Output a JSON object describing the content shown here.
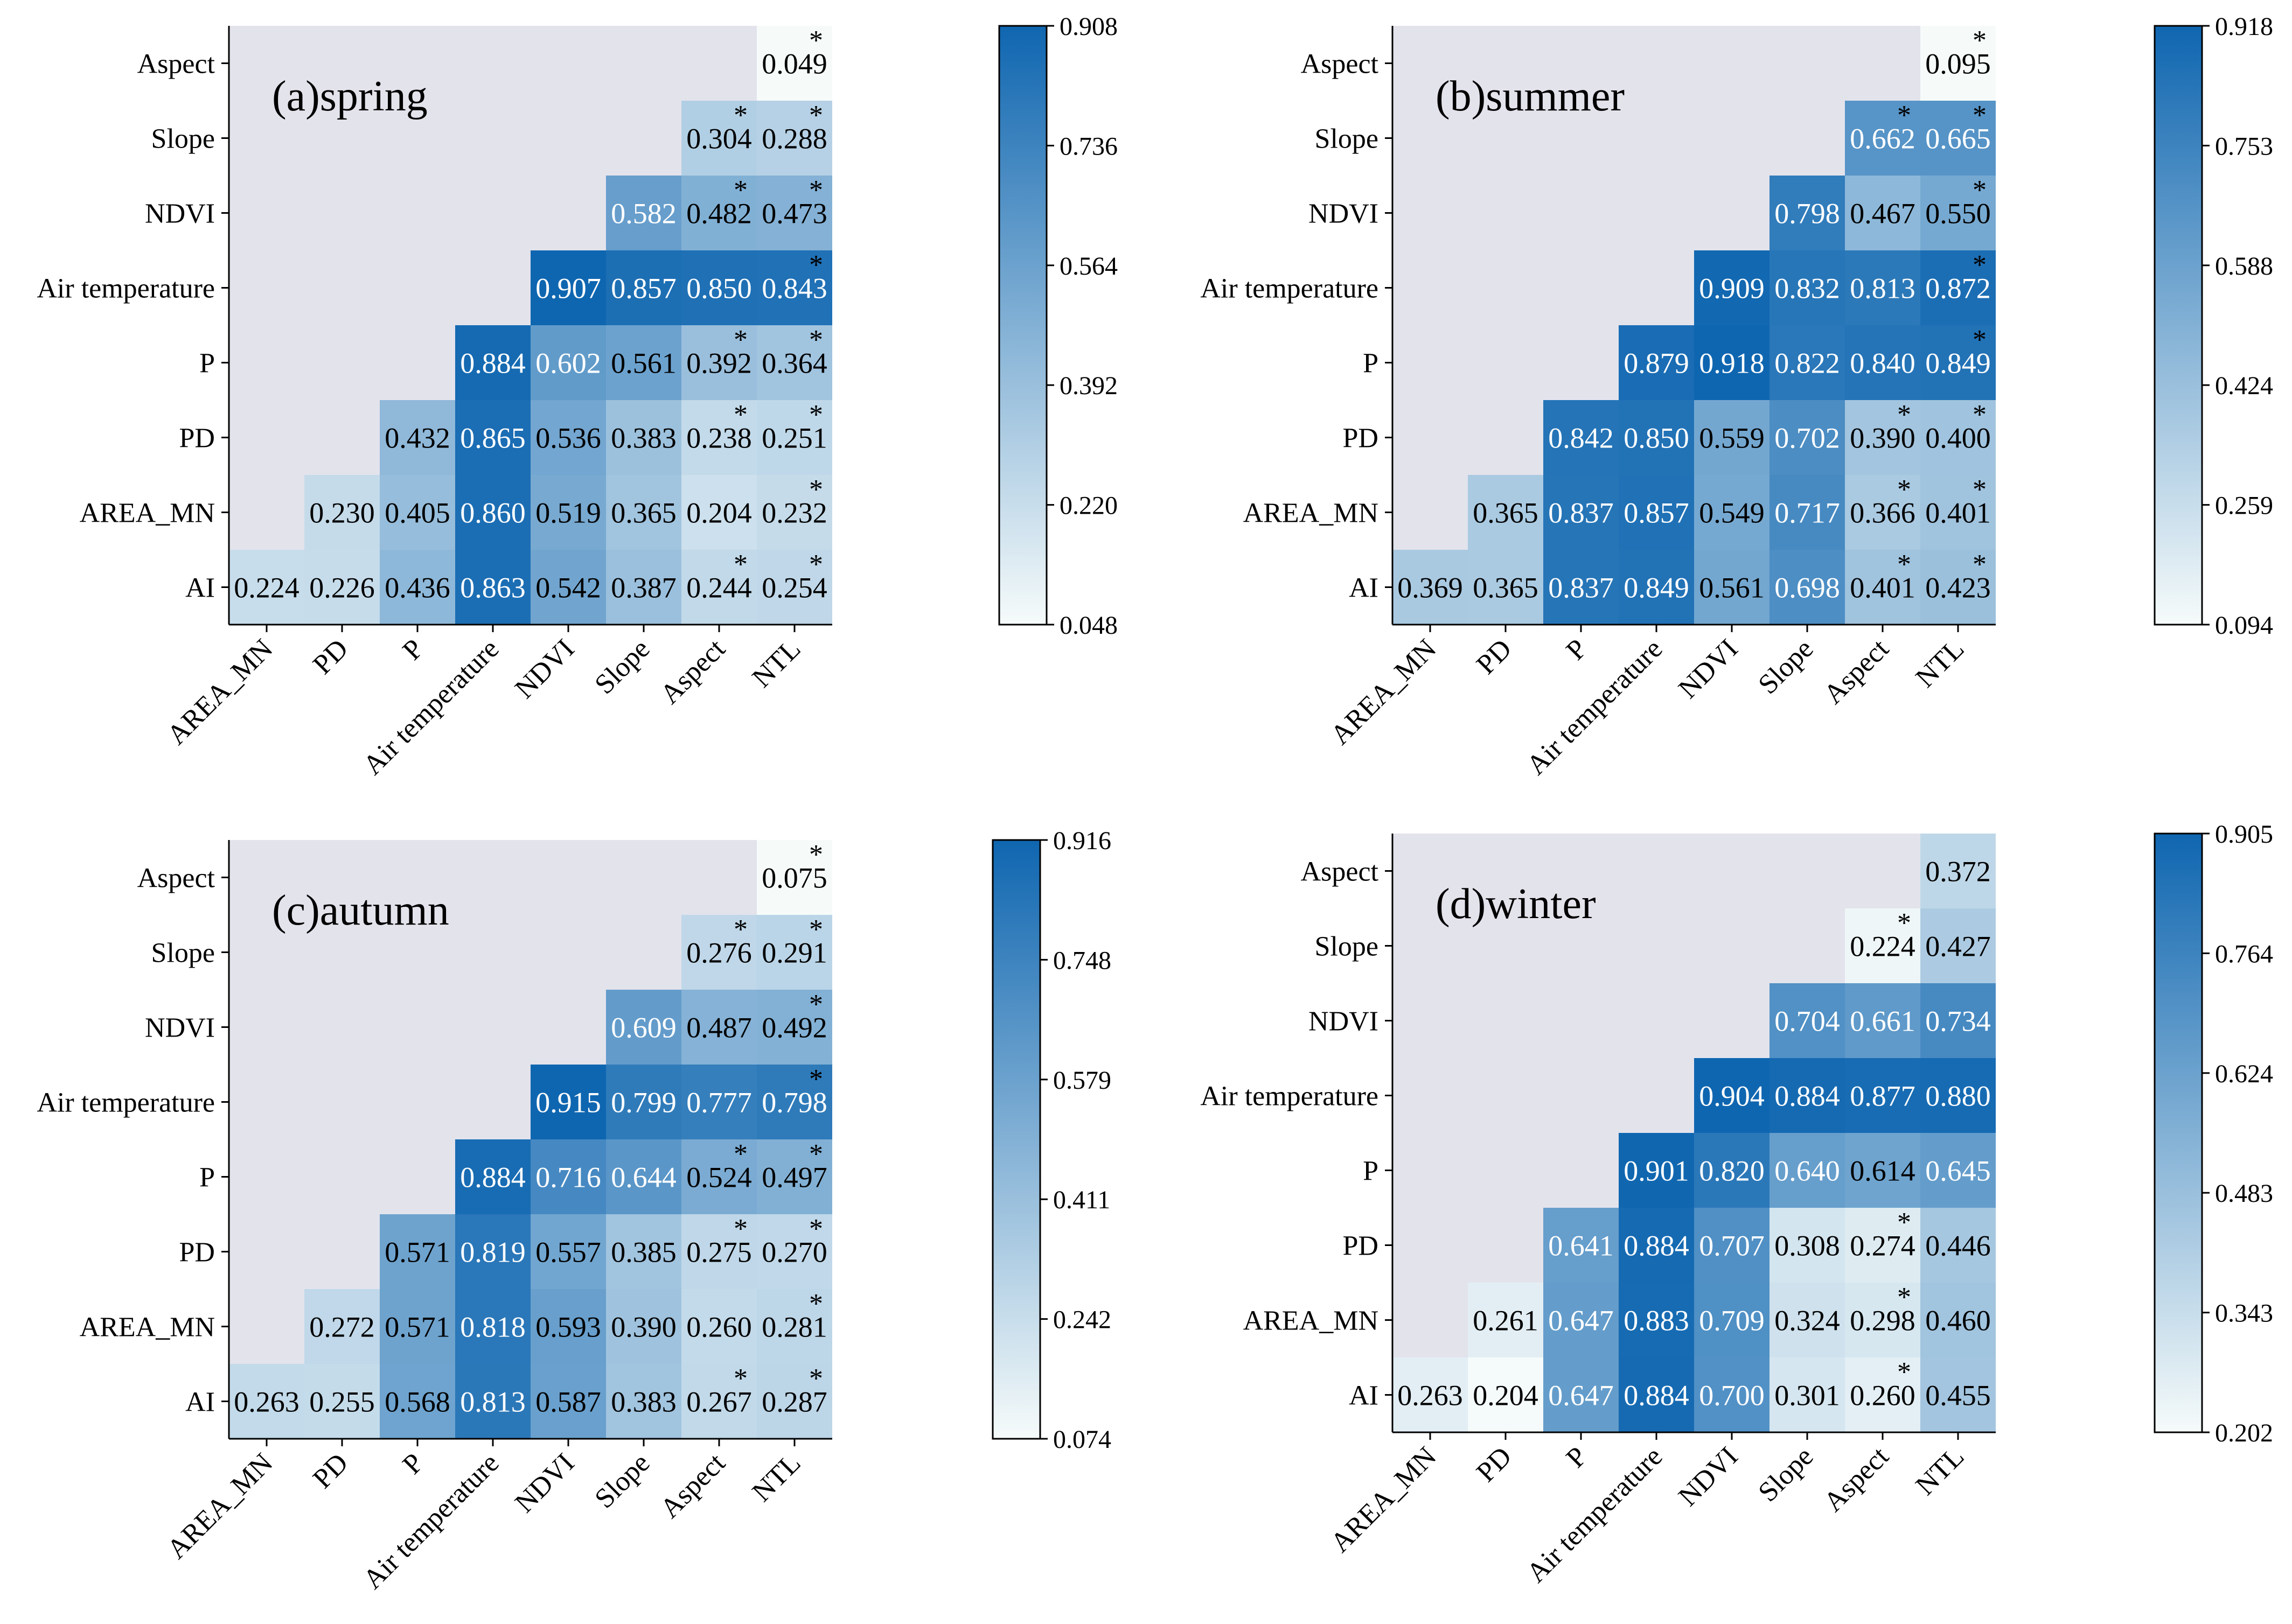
{
  "chart_data": [
    {
      "type": "heatmap",
      "title": "(a)spring",
      "row_labels": [
        "Aspect",
        "Slope",
        "NDVI",
        "Air temperature",
        "P",
        "PD",
        "AREA_MN",
        "AI"
      ],
      "col_labels": [
        "AREA_MN",
        "PD",
        "P",
        "Air temperature",
        "NDVI",
        "Slope",
        "Aspect",
        "NTL"
      ],
      "cells": [
        [
          "",
          "",
          "",
          "",
          "",
          "",
          "",
          "0.049"
        ],
        [
          "",
          "",
          "",
          "",
          "",
          "",
          "0.304",
          "0.288"
        ],
        [
          "",
          "",
          "",
          "",
          "",
          "0.582",
          "0.482",
          "0.473"
        ],
        [
          "",
          "",
          "",
          "",
          "0.907",
          "0.857",
          "0.850",
          "0.843"
        ],
        [
          "",
          "",
          "",
          "0.884",
          "0.602",
          "0.561",
          "0.392",
          "0.364"
        ],
        [
          "",
          "",
          "0.432",
          "0.865",
          "0.536",
          "0.383",
          "0.238",
          "0.251"
        ],
        [
          "",
          "0.230",
          "0.405",
          "0.860",
          "0.519",
          "0.365",
          "0.204",
          "0.232"
        ],
        [
          "0.224",
          "0.226",
          "0.436",
          "0.863",
          "0.542",
          "0.387",
          "0.244",
          "0.254"
        ]
      ],
      "stars": [
        [
          0,
          0,
          0,
          0,
          0,
          0,
          0,
          1
        ],
        [
          0,
          0,
          0,
          0,
          0,
          0,
          1,
          1
        ],
        [
          0,
          0,
          0,
          0,
          0,
          0,
          1,
          1
        ],
        [
          0,
          0,
          0,
          0,
          0,
          0,
          0,
          1
        ],
        [
          0,
          0,
          0,
          0,
          0,
          0,
          1,
          1
        ],
        [
          0,
          0,
          0,
          0,
          0,
          0,
          1,
          1
        ],
        [
          0,
          0,
          0,
          0,
          0,
          0,
          0,
          1
        ],
        [
          0,
          0,
          0,
          0,
          0,
          0,
          1,
          1
        ]
      ],
      "colorbar": {
        "min": 0.048,
        "max": 0.908,
        "ticks": [
          "0.908",
          "0.736",
          "0.564",
          "0.392",
          "0.220",
          "0.048"
        ]
      }
    },
    {
      "type": "heatmap",
      "title": "(b)summer",
      "row_labels": [
        "Aspect",
        "Slope",
        "NDVI",
        "Air temperature",
        "P",
        "PD",
        "AREA_MN",
        "AI"
      ],
      "col_labels": [
        "AREA_MN",
        "PD",
        "P",
        "Air temperature",
        "NDVI",
        "Slope",
        "Aspect",
        "NTL"
      ],
      "cells": [
        [
          "",
          "",
          "",
          "",
          "",
          "",
          "",
          "0.095"
        ],
        [
          "",
          "",
          "",
          "",
          "",
          "",
          "0.662",
          "0.665"
        ],
        [
          "",
          "",
          "",
          "",
          "",
          "0.798",
          "0.467",
          "0.550"
        ],
        [
          "",
          "",
          "",
          "",
          "0.909",
          "0.832",
          "0.813",
          "0.872"
        ],
        [
          "",
          "",
          "",
          "0.879",
          "0.918",
          "0.822",
          "0.840",
          "0.849"
        ],
        [
          "",
          "",
          "0.842",
          "0.850",
          "0.559",
          "0.702",
          "0.390",
          "0.400"
        ],
        [
          "",
          "0.365",
          "0.837",
          "0.857",
          "0.549",
          "0.717",
          "0.366",
          "0.401"
        ],
        [
          "0.369",
          "0.365",
          "0.837",
          "0.849",
          "0.561",
          "0.698",
          "0.401",
          "0.423"
        ]
      ],
      "stars": [
        [
          0,
          0,
          0,
          0,
          0,
          0,
          0,
          1
        ],
        [
          0,
          0,
          0,
          0,
          0,
          0,
          1,
          1
        ],
        [
          0,
          0,
          0,
          0,
          0,
          0,
          0,
          1
        ],
        [
          0,
          0,
          0,
          0,
          0,
          0,
          0,
          1
        ],
        [
          0,
          0,
          0,
          0,
          0,
          0,
          0,
          1
        ],
        [
          0,
          0,
          0,
          0,
          0,
          0,
          1,
          1
        ],
        [
          0,
          0,
          0,
          0,
          0,
          0,
          1,
          1
        ],
        [
          0,
          0,
          0,
          0,
          0,
          0,
          1,
          1
        ]
      ],
      "colorbar": {
        "min": 0.094,
        "max": 0.918,
        "ticks": [
          "0.918",
          "0.753",
          "0.588",
          "0.424",
          "0.259",
          "0.094"
        ]
      }
    },
    {
      "type": "heatmap",
      "title": "(c)autumn",
      "row_labels": [
        "Aspect",
        "Slope",
        "NDVI",
        "Air temperature",
        "P",
        "PD",
        "AREA_MN",
        "AI"
      ],
      "col_labels": [
        "AREA_MN",
        "PD",
        "P",
        "Air temperature",
        "NDVI",
        "Slope",
        "Aspect",
        "NTL"
      ],
      "cells": [
        [
          "",
          "",
          "",
          "",
          "",
          "",
          "",
          "0.075"
        ],
        [
          "",
          "",
          "",
          "",
          "",
          "",
          "0.276",
          "0.291"
        ],
        [
          "",
          "",
          "",
          "",
          "",
          "0.609",
          "0.487",
          "0.492"
        ],
        [
          "",
          "",
          "",
          "",
          "0.915",
          "0.799",
          "0.777",
          "0.798"
        ],
        [
          "",
          "",
          "",
          "0.884",
          "0.716",
          "0.644",
          "0.524",
          "0.497"
        ],
        [
          "",
          "",
          "0.571",
          "0.819",
          "0.557",
          "0.385",
          "0.275",
          "0.270"
        ],
        [
          "",
          "0.272",
          "0.571",
          "0.818",
          "0.593",
          "0.390",
          "0.260",
          "0.281"
        ],
        [
          "0.263",
          "0.255",
          "0.568",
          "0.813",
          "0.587",
          "0.383",
          "0.267",
          "0.287"
        ]
      ],
      "stars": [
        [
          0,
          0,
          0,
          0,
          0,
          0,
          0,
          1
        ],
        [
          0,
          0,
          0,
          0,
          0,
          0,
          1,
          1
        ],
        [
          0,
          0,
          0,
          0,
          0,
          0,
          0,
          1
        ],
        [
          0,
          0,
          0,
          0,
          0,
          0,
          0,
          1
        ],
        [
          0,
          0,
          0,
          0,
          0,
          0,
          1,
          1
        ],
        [
          0,
          0,
          0,
          0,
          0,
          0,
          1,
          1
        ],
        [
          0,
          0,
          0,
          0,
          0,
          0,
          0,
          1
        ],
        [
          0,
          0,
          0,
          0,
          0,
          0,
          1,
          1
        ]
      ],
      "colorbar": {
        "min": 0.074,
        "max": 0.916,
        "ticks": [
          "0.916",
          "0.748",
          "0.579",
          "0.411",
          "0.242",
          "0.074"
        ]
      }
    },
    {
      "type": "heatmap",
      "title": "(d)winter",
      "row_labels": [
        "Aspect",
        "Slope",
        "NDVI",
        "Air temperature",
        "P",
        "PD",
        "AREA_MN",
        "AI"
      ],
      "col_labels": [
        "AREA_MN",
        "PD",
        "P",
        "Air temperature",
        "NDVI",
        "Slope",
        "Aspect",
        "NTL"
      ],
      "cells": [
        [
          "",
          "",
          "",
          "",
          "",
          "",
          "",
          "0.372"
        ],
        [
          "",
          "",
          "",
          "",
          "",
          "",
          "0.224",
          "0.427"
        ],
        [
          "",
          "",
          "",
          "",
          "",
          "0.704",
          "0.661",
          "0.734"
        ],
        [
          "",
          "",
          "",
          "",
          "0.904",
          "0.884",
          "0.877",
          "0.880"
        ],
        [
          "",
          "",
          "",
          "0.901",
          "0.820",
          "0.640",
          "0.614",
          "0.645"
        ],
        [
          "",
          "",
          "0.641",
          "0.884",
          "0.707",
          "0.308",
          "0.274",
          "0.446"
        ],
        [
          "",
          "0.261",
          "0.647",
          "0.883",
          "0.709",
          "0.324",
          "0.298",
          "0.460"
        ],
        [
          "0.263",
          "0.204",
          "0.647",
          "0.884",
          "0.700",
          "0.301",
          "0.260",
          "0.455"
        ]
      ],
      "stars": [
        [
          0,
          0,
          0,
          0,
          0,
          0,
          0,
          0
        ],
        [
          0,
          0,
          0,
          0,
          0,
          0,
          1,
          0
        ],
        [
          0,
          0,
          0,
          0,
          0,
          0,
          0,
          0
        ],
        [
          0,
          0,
          0,
          0,
          0,
          0,
          0,
          0
        ],
        [
          0,
          0,
          0,
          0,
          0,
          0,
          0,
          0
        ],
        [
          0,
          0,
          0,
          0,
          0,
          0,
          1,
          0
        ],
        [
          0,
          0,
          0,
          0,
          0,
          0,
          1,
          0
        ],
        [
          0,
          0,
          0,
          0,
          0,
          0,
          1,
          0
        ]
      ],
      "colorbar": {
        "min": 0.202,
        "max": 0.905,
        "ticks": [
          "0.905",
          "0.764",
          "0.624",
          "0.483",
          "0.343",
          "0.202"
        ]
      }
    }
  ],
  "significance_marker": "*",
  "colors": {
    "empty": "#e3e3ec",
    "low": "#f6fbfa",
    "high": "#0f66b0"
  }
}
